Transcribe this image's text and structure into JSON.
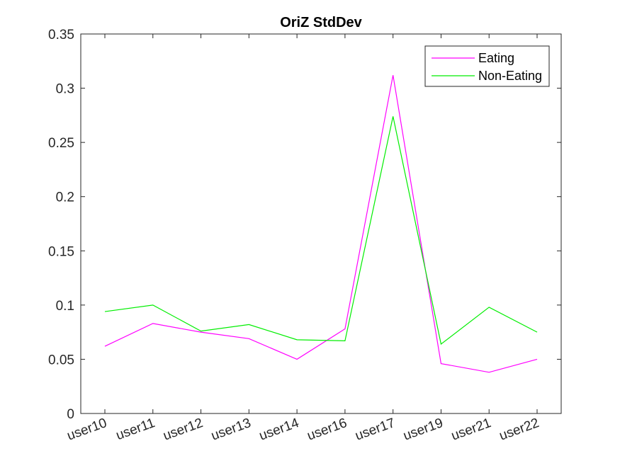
{
  "chart_data": {
    "type": "line",
    "title": "OriZ StdDev",
    "xlabel": "",
    "ylabel": "",
    "categories": [
      "user10",
      "user11",
      "user12",
      "user13",
      "user14",
      "user16",
      "user17",
      "user19",
      "user21",
      "user22"
    ],
    "ylim": [
      0,
      0.35
    ],
    "yticks": [
      0,
      0.05,
      0.1,
      0.15,
      0.2,
      0.25,
      0.3,
      0.35
    ],
    "ytick_labels": [
      "0",
      "0.05",
      "0.1",
      "0.15",
      "0.2",
      "0.25",
      "0.3",
      "0.35"
    ],
    "grid": false,
    "legend_position": "top-right",
    "series": [
      {
        "name": "Eating",
        "color": "#ff00ff",
        "values": [
          0.062,
          0.083,
          0.075,
          0.069,
          0.05,
          0.078,
          0.312,
          0.046,
          0.038,
          0.05
        ]
      },
      {
        "name": "Non-Eating",
        "color": "#00ee00",
        "values": [
          0.094,
          0.1,
          0.076,
          0.082,
          0.068,
          0.067,
          0.274,
          0.064,
          0.098,
          0.075
        ]
      }
    ]
  }
}
